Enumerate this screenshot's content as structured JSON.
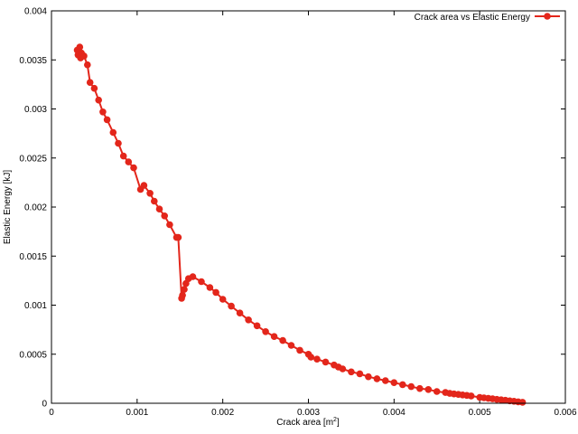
{
  "chart_data": {
    "type": "line",
    "title": "",
    "xlabel": "Crack area [m",
    "xlabel_sup": "2",
    "xlabel_suffix": "]",
    "ylabel": "Elastic Energy [kJ]",
    "xlim": [
      0,
      0.006
    ],
    "ylim": [
      0,
      0.004
    ],
    "x_ticks": [
      0,
      0.001,
      0.002,
      0.003,
      0.004,
      0.005,
      0.006
    ],
    "x_tick_labels": [
      "0",
      "0.001",
      "0.002",
      "0.003",
      "0.004",
      "0.005",
      "0.006"
    ],
    "y_ticks": [
      0,
      0.0005,
      0.001,
      0.0015,
      0.002,
      0.0025,
      0.003,
      0.0035,
      0.004
    ],
    "y_tick_labels": [
      "0",
      "0.0005",
      "0.001",
      "0.0015",
      "0.002",
      "0.0025",
      "0.003",
      "0.0035",
      "0.004"
    ],
    "grid": false,
    "legend_position": "top-right",
    "series": [
      {
        "name": "Crack area vs Elastic Energy",
        "color": "#e3261b",
        "marker": "circle",
        "x": [
          0.0003,
          0.00031,
          0.00032,
          0.00033,
          0.00034,
          0.00033,
          0.00035,
          0.00036,
          0.00038,
          0.00042,
          0.00045,
          0.0005,
          0.00055,
          0.0006,
          0.00065,
          0.00072,
          0.00078,
          0.00084,
          0.0009,
          0.00096,
          0.00104,
          0.00108,
          0.00115,
          0.0012,
          0.00126,
          0.00132,
          0.00138,
          0.00146,
          0.00148,
          0.00152,
          0.00153,
          0.00155,
          0.00157,
          0.0016,
          0.00165,
          0.00175,
          0.00185,
          0.00192,
          0.002,
          0.0021,
          0.0022,
          0.0023,
          0.0024,
          0.0025,
          0.0026,
          0.0027,
          0.0028,
          0.0029,
          0.003,
          0.00303,
          0.0031,
          0.0032,
          0.0033,
          0.00335,
          0.0034,
          0.0035,
          0.0036,
          0.0037,
          0.0038,
          0.0039,
          0.004,
          0.0041,
          0.0042,
          0.0043,
          0.0044,
          0.0045,
          0.0046,
          0.00465,
          0.0047,
          0.00475,
          0.0048,
          0.00485,
          0.0049,
          0.005,
          0.00505,
          0.0051,
          0.00515,
          0.0052,
          0.00525,
          0.0053,
          0.00535,
          0.0054,
          0.00545,
          0.0055
        ],
        "y": [
          0.0036,
          0.00355,
          0.00358,
          0.00363,
          0.00352,
          0.00356,
          0.00357,
          0.00355,
          0.00354,
          0.00345,
          0.00327,
          0.00321,
          0.00309,
          0.00297,
          0.00289,
          0.00276,
          0.00265,
          0.00252,
          0.00246,
          0.0024,
          0.00218,
          0.00222,
          0.00214,
          0.00206,
          0.00198,
          0.00191,
          0.00182,
          0.00169,
          0.00169,
          0.00107,
          0.0011,
          0.00116,
          0.00122,
          0.00127,
          0.00129,
          0.00124,
          0.00118,
          0.00113,
          0.00106,
          0.00099,
          0.00092,
          0.00085,
          0.00079,
          0.00073,
          0.00068,
          0.00064,
          0.00059,
          0.00054,
          0.0005,
          0.00047,
          0.00045,
          0.00042,
          0.00039,
          0.00037,
          0.00035,
          0.00032,
          0.0003,
          0.00027,
          0.00025,
          0.00023,
          0.00021,
          0.00019,
          0.00017,
          0.00015,
          0.00014,
          0.00012,
          0.00011,
          0.0001,
          9.5e-05,
          9e-05,
          8.5e-05,
          8e-05,
          7.5e-05,
          6e-05,
          5.5e-05,
          5e-05,
          4.5e-05,
          4e-05,
          3.5e-05,
          3e-05,
          2.5e-05,
          2e-05,
          1.5e-05,
          1e-05
        ]
      }
    ]
  }
}
